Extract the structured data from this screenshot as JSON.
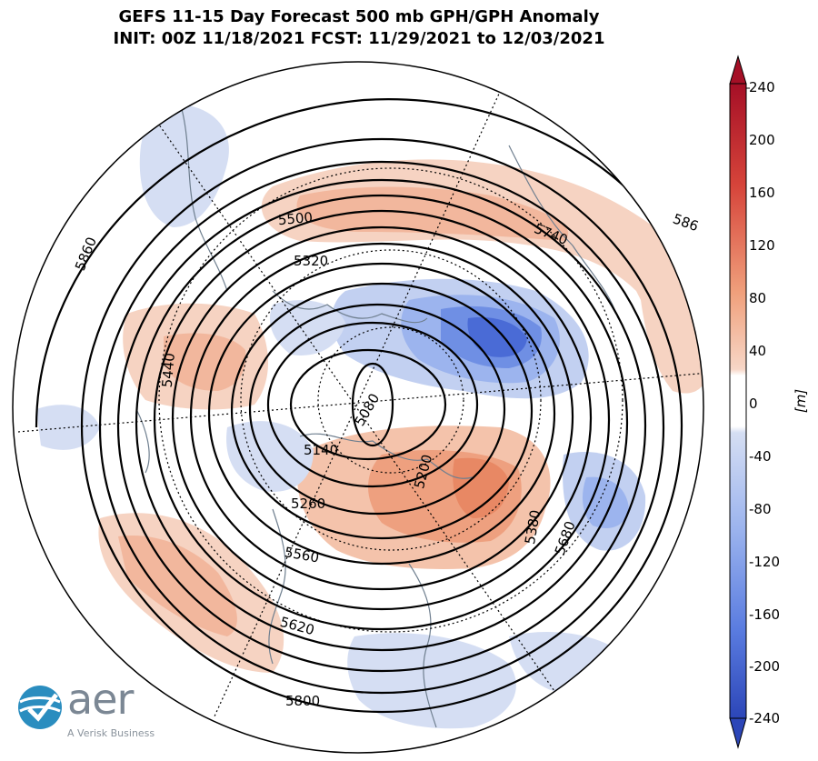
{
  "title": {
    "line1": "GEFS 11-15 Day Forecast 500 mb GPH/GPH Anomaly",
    "line2": "INIT: 00Z 11/18/2021     FCST: 11/29/2021 to 12/03/2021"
  },
  "colorbar": {
    "unit": "[m]",
    "ticks": [
      "240",
      "200",
      "160",
      "120",
      "80",
      "40",
      "0",
      "-40",
      "-80",
      "-120",
      "-160",
      "-200",
      "-240"
    ],
    "warm_color": "#b2182b",
    "cool_color": "#2f4fbf"
  },
  "contour_labels": [
    "5860",
    "5500",
    "5740",
    "586",
    "5320",
    "5440",
    "5080",
    "5140",
    "5200",
    "5260",
    "5380",
    "5560",
    "5680",
    "5620",
    "5800"
  ],
  "logo": {
    "word": "aer",
    "tagline": "A Verisk Business"
  }
}
